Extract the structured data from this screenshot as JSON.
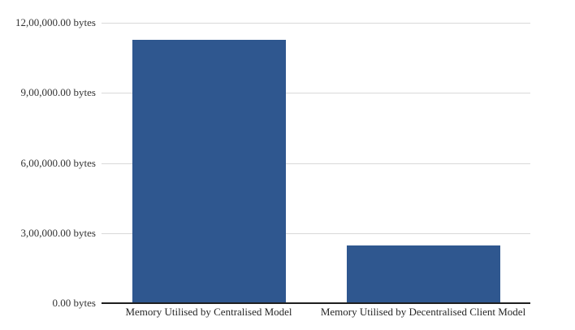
{
  "chart_data": {
    "type": "bar",
    "title": "",
    "xlabel": "",
    "ylabel": "",
    "unit": "bytes",
    "categories": [
      "Memory Utilised by Centralised Model",
      "Memory Utilised by Decentralised Client Model"
    ],
    "values": [
      1128000,
      247000
    ],
    "ylim": [
      0,
      1200000
    ],
    "grid": true,
    "legend_position": "none",
    "number_format": "indian-grouping",
    "y_ticks": [
      {
        "value": 1200000,
        "label": "12,00,000.00 bytes"
      },
      {
        "value": 900000,
        "label": "9,00,000.00 bytes"
      },
      {
        "value": 600000,
        "label": "6,00,000.00 bytes"
      },
      {
        "value": 300000,
        "label": "3,00,000.00 bytes"
      },
      {
        "value": 0,
        "label": "0.00 bytes"
      }
    ],
    "colors": {
      "bar": "#2f578f",
      "gridline": "#d9d9d9",
      "axis": "#1f1f1f",
      "tick_text": "#333333",
      "category_text": "#262626",
      "background": "#ffffff"
    }
  }
}
